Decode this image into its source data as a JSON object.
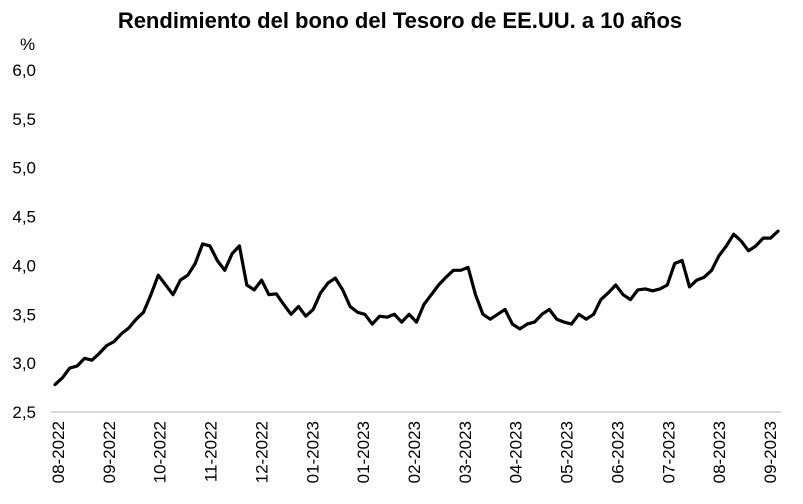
{
  "chart_data": {
    "type": "line",
    "title": "Rendimiento del bono del Tesoro de EE.UU. a 10 años",
    "ylabel": "%",
    "xlabel": "",
    "ylim": [
      2.5,
      6.0
    ],
    "yticks": [
      "2,5",
      "3,0",
      "3,5",
      "4,0",
      "4,5",
      "5,0",
      "5,5",
      "6,0"
    ],
    "ytick_values": [
      2.5,
      3.0,
      3.5,
      4.0,
      4.5,
      5.0,
      5.5,
      6.0
    ],
    "xticks": [
      "08-2022",
      "09-2022",
      "10-2022",
      "11-2022",
      "12-2022",
      "01-2023",
      "01-2023",
      "02-2023",
      "03-2023",
      "04-2023",
      "05-2023",
      "06-2023",
      "07-2023",
      "08-2023",
      "09-2023"
    ],
    "grid": false,
    "line_color": "#000000",
    "series": [
      {
        "values": [
          2.78,
          2.85,
          2.95,
          2.97,
          3.05,
          3.03,
          3.1,
          3.18,
          3.22,
          3.3,
          3.36,
          3.45,
          3.52,
          3.7,
          3.9,
          3.8,
          3.7,
          3.85,
          3.9,
          4.02,
          4.22,
          4.2,
          4.05,
          3.95,
          4.12,
          4.2,
          3.8,
          3.75,
          3.85,
          3.7,
          3.71,
          3.6,
          3.5,
          3.58,
          3.48,
          3.55,
          3.72,
          3.82,
          3.87,
          3.75,
          3.58,
          3.52,
          3.5,
          3.4,
          3.48,
          3.47,
          3.5,
          3.42,
          3.5,
          3.42,
          3.6,
          3.7,
          3.8,
          3.88,
          3.95,
          3.95,
          3.98,
          3.7,
          3.5,
          3.45,
          3.5,
          3.55,
          3.4,
          3.35,
          3.4,
          3.42,
          3.5,
          3.55,
          3.45,
          3.42,
          3.4,
          3.5,
          3.45,
          3.5,
          3.65,
          3.72,
          3.8,
          3.7,
          3.65,
          3.75,
          3.76,
          3.74,
          3.76,
          3.8,
          4.02,
          4.05,
          3.78,
          3.85,
          3.88,
          3.95,
          4.1,
          4.2,
          4.32,
          4.25,
          4.15,
          4.2,
          4.28,
          4.28,
          4.35
        ]
      }
    ]
  }
}
